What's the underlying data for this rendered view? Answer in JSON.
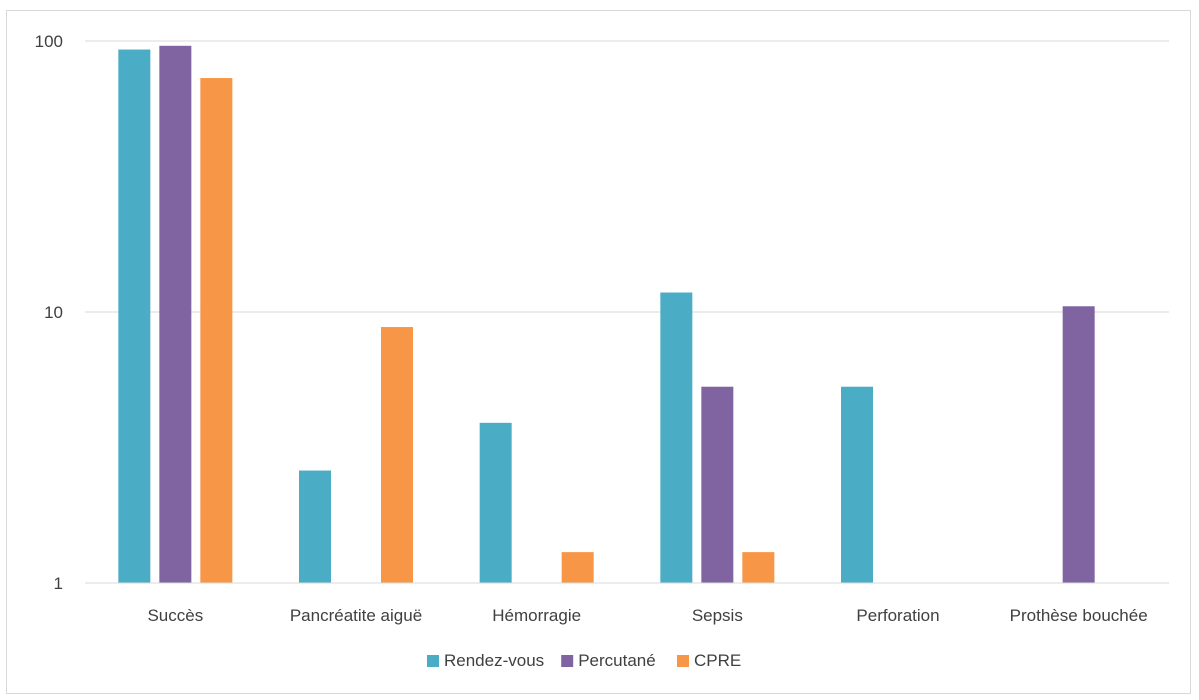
{
  "chart_data": {
    "type": "bar",
    "y_scale": "log",
    "ylim": [
      1,
      100
    ],
    "y_ticks": [
      1,
      10,
      100
    ],
    "grid": true,
    "legend_position": "bottom",
    "categories": [
      "Succès",
      "Pancréatite aiguë",
      "Hémorragie",
      "Sepsis",
      "Perforation",
      "Prothèse bouchée"
    ],
    "series": [
      {
        "name": "Rendez-vous",
        "color": "#4bacc6",
        "values": [
          93,
          2.6,
          3.9,
          11.8,
          5.3,
          null
        ]
      },
      {
        "name": "Percutané",
        "color": "#8064a2",
        "values": [
          96,
          null,
          null,
          5.3,
          null,
          10.5
        ]
      },
      {
        "name": "CPRE",
        "color": "#f79646",
        "values": [
          73,
          8.8,
          1.3,
          1.3,
          null,
          null
        ]
      }
    ]
  }
}
